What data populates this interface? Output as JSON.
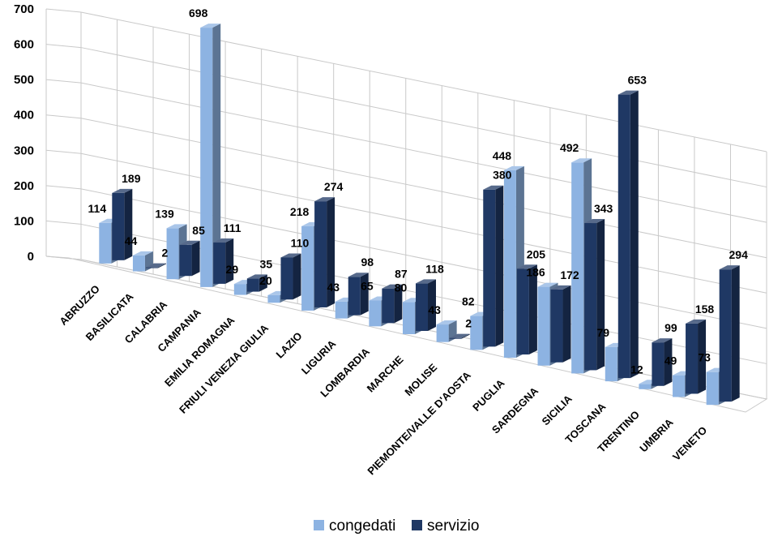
{
  "chart_data": {
    "type": "bar",
    "style": "3d-clustered-column",
    "categories": [
      "ABRUZZO",
      "BASILICATA",
      "CALABRIA",
      "CAMPANIA",
      "EMILIA ROMAGNA",
      "FRIULI VENEZIA GIULIA",
      "LAZIO",
      "LIGURIA",
      "LOMBARDIA",
      "MARCHE",
      "MOLISE",
      "PIEMONTE/VALLE D'AOSTA",
      "PUGLIA",
      "SARDEGNA",
      "SICILIA",
      "TOSCANA",
      "TRENTINO",
      "UMBRIA",
      "VENETO"
    ],
    "series": [
      {
        "name": "congedati",
        "color": "#8db3e2",
        "values": [
          114,
          44,
          139,
          698,
          29,
          20,
          218,
          43,
          65,
          80,
          43,
          82,
          448,
          186,
          492,
          79,
          12,
          49,
          73
        ]
      },
      {
        "name": "servizio",
        "color": "#1f3864",
        "values": [
          189,
          2,
          85,
          111,
          35,
          110,
          274,
          98,
          87,
          118,
          2,
          380,
          205,
          172,
          343,
          653,
          99,
          158,
          294
        ]
      }
    ],
    "y_ticks": [
      "0",
      "100",
      "200",
      "300",
      "400",
      "500",
      "600",
      "700"
    ],
    "ylim": [
      0,
      700
    ],
    "grid": true,
    "legend_position": "bottom"
  }
}
